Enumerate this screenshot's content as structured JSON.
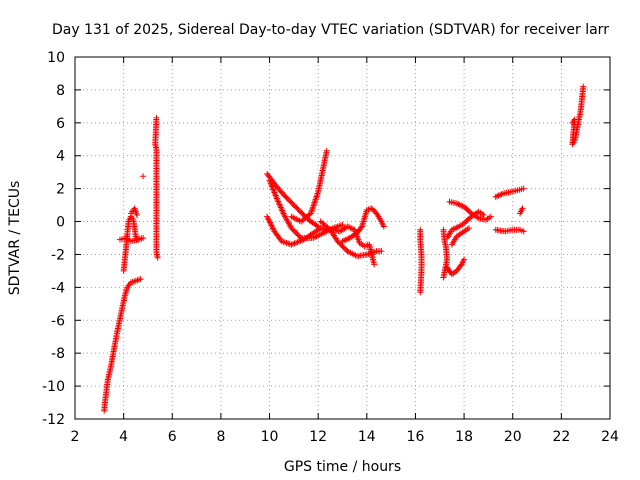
{
  "chart_data": {
    "type": "scatter",
    "title": "Day 131 of 2025, Sidereal Day-to-day VTEC variation (SDTVAR) for receiver larr",
    "xlabel": "GPS time / hours",
    "ylabel": "SDTVAR / TECUs",
    "xlim": [
      2,
      24
    ],
    "ylim": [
      -12,
      10
    ],
    "xticks": [
      2,
      4,
      6,
      8,
      10,
      12,
      14,
      16,
      18,
      20,
      22,
      24
    ],
    "yticks": [
      -12,
      -10,
      -8,
      -6,
      -4,
      -2,
      0,
      2,
      4,
      6,
      8,
      10
    ],
    "grid": true,
    "marker": "+",
    "color": "#ff0000",
    "series": [
      {
        "name": "SDTVAR",
        "segments": [
          [
            [
              3.2,
              -11.5
            ],
            [
              3.25,
              -10.8
            ],
            [
              3.3,
              -10.2
            ],
            [
              3.35,
              -9.6
            ],
            [
              3.45,
              -9.0
            ],
            [
              3.55,
              -8.2
            ],
            [
              3.65,
              -7.4
            ],
            [
              3.75,
              -6.6
            ],
            [
              3.85,
              -5.9
            ],
            [
              3.95,
              -5.2
            ],
            [
              4.05,
              -4.5
            ],
            [
              4.15,
              -4.0
            ],
            [
              4.3,
              -3.7
            ],
            [
              4.5,
              -3.6
            ],
            [
              4.7,
              -3.5
            ]
          ],
          [
            [
              4.0,
              -3.0
            ],
            [
              4.05,
              -2.3
            ],
            [
              4.1,
              -1.6
            ],
            [
              4.15,
              -0.8
            ],
            [
              4.2,
              0.0
            ],
            [
              4.3,
              0.3
            ],
            [
              4.4,
              0.1
            ],
            [
              4.45,
              -0.4
            ],
            [
              4.5,
              -0.9
            ],
            [
              4.55,
              -1.1
            ]
          ],
          [
            [
              3.85,
              -1.1
            ],
            [
              4.1,
              -1.0
            ],
            [
              4.3,
              -1.2
            ],
            [
              4.6,
              -1.1
            ],
            [
              4.8,
              -1.0
            ]
          ],
          [
            [
              4.3,
              0.5
            ],
            [
              4.45,
              0.8
            ],
            [
              4.55,
              0.4
            ]
          ],
          [
            [
              5.35,
              6.3
            ],
            [
              5.3,
              4.7
            ],
            [
              5.35,
              4.4
            ],
            [
              5.35,
              -1.0
            ],
            [
              5.35,
              -1.9
            ],
            [
              5.4,
              -2.2
            ]
          ],
          [
            [
              4.8,
              2.75
            ]
          ],
          [
            [
              9.9,
              2.9
            ],
            [
              10.2,
              2.3
            ],
            [
              10.6,
              1.6
            ],
            [
              11.0,
              1.0
            ],
            [
              11.4,
              0.4
            ],
            [
              11.7,
              0.0
            ],
            [
              12.0,
              -0.3
            ]
          ],
          [
            [
              10.9,
              0.3
            ],
            [
              11.3,
              0.0
            ],
            [
              11.7,
              0.5
            ],
            [
              12.0,
              1.8
            ],
            [
              12.2,
              3.2
            ],
            [
              12.35,
              4.3
            ]
          ],
          [
            [
              9.9,
              0.3
            ],
            [
              10.2,
              -0.6
            ],
            [
              10.5,
              -1.2
            ],
            [
              10.9,
              -1.4
            ],
            [
              11.4,
              -1.1
            ],
            [
              11.8,
              -0.7
            ],
            [
              12.1,
              -0.4
            ],
            [
              12.5,
              -0.5
            ],
            [
              12.8,
              -1.2
            ],
            [
              13.2,
              -1.8
            ],
            [
              13.6,
              -2.1
            ],
            [
              14.0,
              -2.0
            ],
            [
              14.4,
              -1.8
            ],
            [
              14.6,
              -1.8
            ]
          ],
          [
            [
              10.0,
              2.5
            ],
            [
              10.3,
              1.4
            ],
            [
              10.6,
              0.4
            ],
            [
              10.9,
              -0.4
            ],
            [
              11.3,
              -1.0
            ],
            [
              11.8,
              -1.0
            ],
            [
              12.2,
              -0.7
            ],
            [
              12.6,
              -0.4
            ],
            [
              13.0,
              -0.2
            ]
          ],
          [
            [
              12.1,
              0.0
            ],
            [
              12.5,
              -0.5
            ],
            [
              12.9,
              -0.6
            ],
            [
              13.2,
              -0.3
            ],
            [
              13.5,
              -0.5
            ],
            [
              13.7,
              -1.3
            ],
            [
              13.9,
              -1.5
            ],
            [
              14.1,
              -1.4
            ],
            [
              14.2,
              -2.0
            ],
            [
              14.3,
              -2.6
            ]
          ],
          [
            [
              13.0,
              -1.2
            ],
            [
              13.3,
              -1.0
            ],
            [
              13.6,
              -0.7
            ],
            [
              13.8,
              -0.3
            ],
            [
              14.0,
              0.7
            ],
            [
              14.2,
              0.8
            ],
            [
              14.4,
              0.5
            ],
            [
              14.6,
              0.0
            ],
            [
              14.7,
              -0.3
            ]
          ],
          [
            [
              16.2,
              -0.5
            ],
            [
              16.2,
              -1.1
            ],
            [
              16.25,
              -2.1
            ],
            [
              16.25,
              -2.8
            ],
            [
              16.2,
              -4.3
            ]
          ],
          [
            [
              17.15,
              -0.5
            ],
            [
              17.2,
              -1.2
            ],
            [
              17.25,
              -1.5
            ],
            [
              17.3,
              -2.3
            ],
            [
              17.15,
              -3.4
            ]
          ],
          [
            [
              17.3,
              -2.8
            ],
            [
              17.5,
              -3.2
            ],
            [
              17.7,
              -3.0
            ],
            [
              17.9,
              -2.6
            ],
            [
              18.0,
              -2.3
            ]
          ],
          [
            [
              17.4,
              1.2
            ],
            [
              17.7,
              1.1
            ],
            [
              18.0,
              0.9
            ],
            [
              18.3,
              0.5
            ],
            [
              18.6,
              0.2
            ],
            [
              18.9,
              0.1
            ],
            [
              19.1,
              0.3
            ]
          ],
          [
            [
              17.3,
              -1.0
            ],
            [
              17.5,
              -0.5
            ],
            [
              17.8,
              -0.3
            ],
            [
              18.0,
              -0.1
            ],
            [
              18.3,
              0.3
            ],
            [
              18.6,
              0.6
            ],
            [
              18.8,
              0.4
            ]
          ],
          [
            [
              17.5,
              -1.4
            ],
            [
              17.7,
              -0.9
            ],
            [
              18.0,
              -0.6
            ],
            [
              18.2,
              -0.4
            ]
          ],
          [
            [
              19.3,
              -0.5
            ],
            [
              19.7,
              -0.6
            ],
            [
              20.0,
              -0.5
            ],
            [
              20.3,
              -0.5
            ],
            [
              20.45,
              -0.6
            ]
          ],
          [
            [
              19.3,
              1.5
            ],
            [
              19.6,
              1.7
            ],
            [
              19.9,
              1.8
            ],
            [
              20.2,
              1.9
            ],
            [
              20.45,
              2.0
            ]
          ],
          [
            [
              20.3,
              0.5
            ],
            [
              20.4,
              0.8
            ]
          ],
          [
            [
              22.45,
              6.0
            ],
            [
              22.55,
              6.2
            ],
            [
              22.45,
              4.7
            ],
            [
              22.55,
              4.9
            ],
            [
              22.8,
              6.8
            ],
            [
              22.85,
              7.5
            ],
            [
              22.9,
              8.2
            ]
          ]
        ]
      }
    ]
  }
}
